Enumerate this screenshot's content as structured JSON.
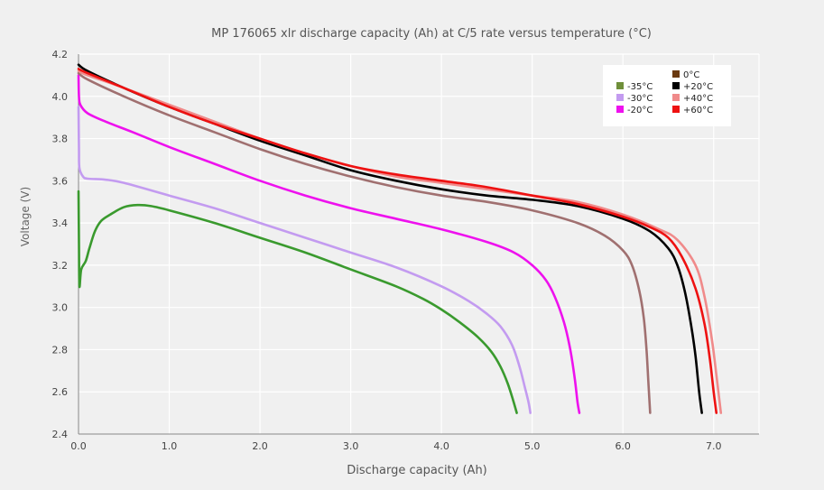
{
  "chart_data": {
    "type": "line",
    "title": "MP 176065 xlr discharge capacity (Ah) at C/5 rate versus temperature (°C)",
    "xlabel": "Discharge capacity (Ah)",
    "ylabel": "Voltage (V)",
    "xlim": [
      0,
      7.5
    ],
    "ylim": [
      2.4,
      4.2
    ],
    "x_ticks": [
      "0.0",
      "1.0",
      "2.0",
      "3.0",
      "4.0",
      "5.0",
      "6.0",
      "7.0"
    ],
    "y_ticks": [
      "2.4",
      "2.6",
      "2.8",
      "3.0",
      "3.2",
      "3.4",
      "3.6",
      "3.8",
      "4.0",
      "4.2"
    ],
    "grid": true,
    "legend_position": "top-right",
    "series": [
      {
        "name": "-35°C",
        "color": "#3a9a2e",
        "legend_color": "#6f8f3a",
        "points": [
          [
            0.0,
            3.55
          ],
          [
            0.005,
            3.3
          ],
          [
            0.01,
            3.1
          ],
          [
            0.03,
            3.18
          ],
          [
            0.08,
            3.22
          ],
          [
            0.12,
            3.28
          ],
          [
            0.18,
            3.36
          ],
          [
            0.25,
            3.41
          ],
          [
            0.35,
            3.44
          ],
          [
            0.5,
            3.475
          ],
          [
            0.65,
            3.485
          ],
          [
            0.8,
            3.48
          ],
          [
            1.0,
            3.46
          ],
          [
            1.5,
            3.4
          ],
          [
            2.0,
            3.33
          ],
          [
            2.5,
            3.26
          ],
          [
            3.0,
            3.18
          ],
          [
            3.5,
            3.1
          ],
          [
            3.8,
            3.04
          ],
          [
            4.0,
            2.99
          ],
          [
            4.2,
            2.93
          ],
          [
            4.4,
            2.86
          ],
          [
            4.55,
            2.79
          ],
          [
            4.65,
            2.72
          ],
          [
            4.73,
            2.64
          ],
          [
            4.79,
            2.56
          ],
          [
            4.83,
            2.5
          ]
        ]
      },
      {
        "name": "-30°C",
        "color": "#c39bf0",
        "points": [
          [
            0.0,
            3.95
          ],
          [
            0.005,
            3.75
          ],
          [
            0.01,
            3.66
          ],
          [
            0.05,
            3.62
          ],
          [
            0.1,
            3.61
          ],
          [
            0.3,
            3.605
          ],
          [
            0.5,
            3.59
          ],
          [
            1.0,
            3.53
          ],
          [
            1.5,
            3.47
          ],
          [
            2.0,
            3.4
          ],
          [
            2.5,
            3.33
          ],
          [
            3.0,
            3.26
          ],
          [
            3.5,
            3.19
          ],
          [
            4.0,
            3.1
          ],
          [
            4.3,
            3.03
          ],
          [
            4.5,
            2.97
          ],
          [
            4.65,
            2.91
          ],
          [
            4.78,
            2.82
          ],
          [
            4.86,
            2.72
          ],
          [
            4.92,
            2.62
          ],
          [
            4.96,
            2.55
          ],
          [
            4.98,
            2.5
          ]
        ]
      },
      {
        "name": "-20°C",
        "color": "#ee11ee",
        "points": [
          [
            0.0,
            4.1
          ],
          [
            0.005,
            4.0
          ],
          [
            0.02,
            3.96
          ],
          [
            0.1,
            3.92
          ],
          [
            0.3,
            3.88
          ],
          [
            0.6,
            3.83
          ],
          [
            1.0,
            3.76
          ],
          [
            1.5,
            3.68
          ],
          [
            2.0,
            3.6
          ],
          [
            2.5,
            3.53
          ],
          [
            3.0,
            3.47
          ],
          [
            3.5,
            3.42
          ],
          [
            4.0,
            3.37
          ],
          [
            4.5,
            3.31
          ],
          [
            4.8,
            3.26
          ],
          [
            5.0,
            3.2
          ],
          [
            5.15,
            3.13
          ],
          [
            5.25,
            3.05
          ],
          [
            5.35,
            2.93
          ],
          [
            5.42,
            2.8
          ],
          [
            5.47,
            2.66
          ],
          [
            5.5,
            2.55
          ],
          [
            5.52,
            2.5
          ]
        ]
      },
      {
        "name": "0°C",
        "color": "#a07070",
        "legend_color": "#6b3a10",
        "points": [
          [
            0.0,
            4.11
          ],
          [
            0.1,
            4.08
          ],
          [
            0.5,
            4.0
          ],
          [
            1.0,
            3.91
          ],
          [
            1.5,
            3.83
          ],
          [
            2.0,
            3.75
          ],
          [
            2.5,
            3.68
          ],
          [
            3.0,
            3.62
          ],
          [
            3.5,
            3.57
          ],
          [
            4.0,
            3.53
          ],
          [
            4.5,
            3.5
          ],
          [
            5.0,
            3.46
          ],
          [
            5.5,
            3.4
          ],
          [
            5.8,
            3.34
          ],
          [
            6.0,
            3.27
          ],
          [
            6.1,
            3.2
          ],
          [
            6.18,
            3.08
          ],
          [
            6.23,
            2.95
          ],
          [
            6.26,
            2.8
          ],
          [
            6.28,
            2.65
          ],
          [
            6.3,
            2.5
          ]
        ]
      },
      {
        "name": "+20°C",
        "color": "#000000",
        "points": [
          [
            0.0,
            4.15
          ],
          [
            0.1,
            4.12
          ],
          [
            0.5,
            4.04
          ],
          [
            1.0,
            3.95
          ],
          [
            1.5,
            3.87
          ],
          [
            2.0,
            3.79
          ],
          [
            2.5,
            3.72
          ],
          [
            3.0,
            3.65
          ],
          [
            3.5,
            3.6
          ],
          [
            4.0,
            3.56
          ],
          [
            4.5,
            3.53
          ],
          [
            5.0,
            3.51
          ],
          [
            5.5,
            3.48
          ],
          [
            6.0,
            3.42
          ],
          [
            6.3,
            3.36
          ],
          [
            6.5,
            3.28
          ],
          [
            6.6,
            3.2
          ],
          [
            6.68,
            3.08
          ],
          [
            6.75,
            2.92
          ],
          [
            6.8,
            2.77
          ],
          [
            6.84,
            2.6
          ],
          [
            6.87,
            2.5
          ]
        ]
      },
      {
        "name": "+40°C",
        "color": "#f08a8a",
        "points": [
          [
            0.0,
            4.12
          ],
          [
            0.1,
            4.1
          ],
          [
            0.5,
            4.04
          ],
          [
            1.0,
            3.96
          ],
          [
            1.5,
            3.88
          ],
          [
            2.0,
            3.8
          ],
          [
            2.5,
            3.73
          ],
          [
            3.0,
            3.67
          ],
          [
            3.5,
            3.62
          ],
          [
            4.0,
            3.59
          ],
          [
            4.5,
            3.56
          ],
          [
            5.0,
            3.53
          ],
          [
            5.5,
            3.5
          ],
          [
            6.0,
            3.44
          ],
          [
            6.4,
            3.37
          ],
          [
            6.6,
            3.32
          ],
          [
            6.8,
            3.2
          ],
          [
            6.9,
            3.05
          ],
          [
            6.98,
            2.85
          ],
          [
            7.03,
            2.68
          ],
          [
            7.08,
            2.5
          ]
        ]
      },
      {
        "name": "+60°C",
        "color": "#ee1111",
        "points": [
          [
            0.0,
            4.13
          ],
          [
            0.1,
            4.11
          ],
          [
            0.5,
            4.04
          ],
          [
            1.0,
            3.95
          ],
          [
            1.5,
            3.87
          ],
          [
            2.0,
            3.8
          ],
          [
            2.5,
            3.73
          ],
          [
            3.0,
            3.67
          ],
          [
            3.5,
            3.63
          ],
          [
            4.0,
            3.6
          ],
          [
            4.5,
            3.57
          ],
          [
            5.0,
            3.53
          ],
          [
            5.5,
            3.49
          ],
          [
            6.0,
            3.43
          ],
          [
            6.3,
            3.38
          ],
          [
            6.5,
            3.33
          ],
          [
            6.65,
            3.24
          ],
          [
            6.8,
            3.09
          ],
          [
            6.9,
            2.92
          ],
          [
            6.96,
            2.75
          ],
          [
            7.0,
            2.6
          ],
          [
            7.03,
            2.5
          ]
        ]
      }
    ],
    "legend_columns": [
      [
        "",
        "-35°C",
        "-30°C",
        "-20°C"
      ],
      [
        "0°C",
        "+20°C",
        "+40°C",
        "+60°C"
      ]
    ]
  }
}
